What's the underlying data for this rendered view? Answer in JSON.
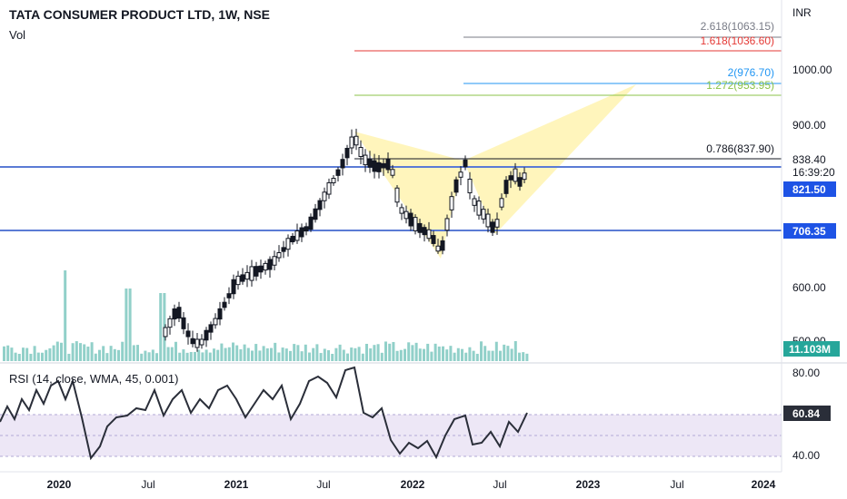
{
  "header": {
    "symbol_title": "TATA CONSUMER PRODUCT LTD, 1W, NSE",
    "volume_label": "Vol",
    "rsi_label": "RSI (14, close, WMA, 45, 0.001)"
  },
  "price_axis": {
    "currency": "INR",
    "ticks": [
      "1000.00",
      "900.00",
      "600.00",
      "500.00"
    ],
    "last_price": "838.40",
    "countdown": "16:39:20",
    "level_upper": "821.50",
    "level_lower": "706.35",
    "volume_value": "11.103M"
  },
  "rsi_axis": {
    "ticks": [
      "80.00",
      "40.00"
    ],
    "value": "60.84"
  },
  "time_axis": {
    "labels": [
      "2020",
      "Jul",
      "2021",
      "Jul",
      "2022",
      "Jul",
      "2023",
      "Jul",
      "2024"
    ]
  },
  "fib_levels": [
    {
      "label": "2.618(1063.15)",
      "color": "#787b86"
    },
    {
      "label": "1.618(1036.60)",
      "color": "#e53935"
    },
    {
      "label": "2(976.70)",
      "color": "#2196f3"
    },
    {
      "label": "1.272(953.95)",
      "color": "#8bc34a"
    },
    {
      "label": "0.786(837.90)",
      "color": "#131722"
    }
  ],
  "colors": {
    "hline": "#5b7bd5",
    "pattern_fill": "#fff3b0",
    "volume_bar": "#7ec8c0",
    "rsi_line": "#2a2e39",
    "rsi_band": "#ede7f6",
    "level_badge": "#1e53e5",
    "volume_badge": "#26a69a"
  }
}
